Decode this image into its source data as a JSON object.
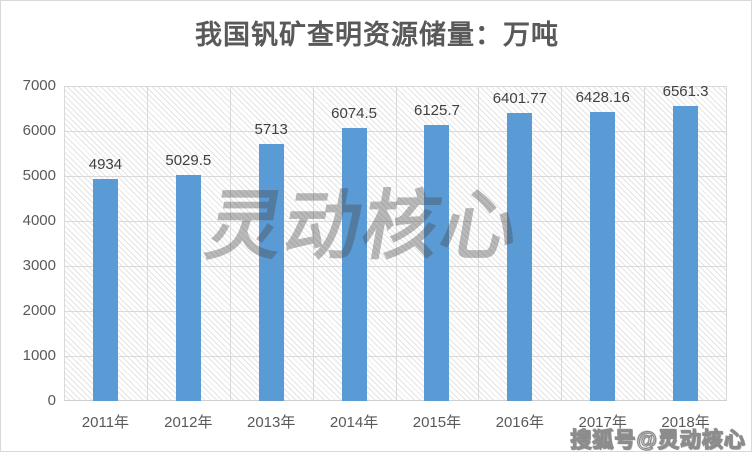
{
  "chart_data": {
    "type": "bar",
    "title": "我国钒矿查明资源储量：万吨",
    "categories": [
      "2011年",
      "2012年",
      "2013年",
      "2014年",
      "2015年",
      "2016年",
      "2017年",
      "2018年"
    ],
    "values": [
      4934,
      5029.5,
      5713,
      6074.5,
      6125.7,
      6401.77,
      6428.16,
      6561.3
    ],
    "labels": [
      "4934",
      "5029.5",
      "5713",
      "6074.5",
      "6125.7",
      "6401.77",
      "6428.16",
      "6561.3"
    ],
    "xlabel": "",
    "ylabel": "",
    "ylim": [
      0,
      7000
    ],
    "yticks": [
      0,
      1000,
      2000,
      3000,
      4000,
      5000,
      6000,
      7000
    ],
    "grid": true,
    "legend": "none",
    "bar_color": "#5b9bd5",
    "gridline_color": "#d9d9d9",
    "axis_text_color": "#595959",
    "value_label_color": "#404040",
    "title_color": "#595959",
    "plot_bg_pattern": "diagonal-hatch"
  },
  "watermarks": {
    "center": "灵动核心",
    "bottom_right": "搜狐号@灵动核心"
  }
}
